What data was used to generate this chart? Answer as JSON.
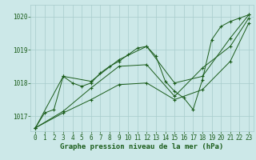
{
  "xlabel": "Graphe pression niveau de la mer (hPa)",
  "xlim": [
    -0.5,
    23.5
  ],
  "ylim": [
    1016.55,
    1020.35
  ],
  "yticks": [
    1017,
    1018,
    1019,
    1020
  ],
  "xticks": [
    0,
    1,
    2,
    3,
    4,
    5,
    6,
    7,
    8,
    9,
    10,
    11,
    12,
    13,
    14,
    15,
    16,
    17,
    18,
    19,
    20,
    21,
    22,
    23
  ],
  "bg_color": "#cce8e8",
  "grid_color": "#a8cccc",
  "line_color": "#1a5c1a",
  "lines": [
    {
      "x": [
        0,
        1,
        2,
        3,
        4,
        5,
        6,
        7,
        8,
        9,
        10,
        11,
        12,
        13,
        14,
        15,
        16,
        17,
        18,
        19,
        20,
        21,
        22,
        23
      ],
      "y": [
        1016.65,
        1017.1,
        1017.2,
        1018.2,
        1018.0,
        1017.9,
        1018.0,
        1018.3,
        1018.5,
        1018.65,
        1018.85,
        1019.05,
        1019.1,
        1018.8,
        1018.05,
        1017.75,
        1017.55,
        1017.2,
        1018.1,
        1019.3,
        1019.7,
        1019.85,
        1019.95,
        1020.05
      ]
    },
    {
      "x": [
        0,
        3,
        6,
        9,
        12,
        15,
        18,
        21,
        23
      ],
      "y": [
        1016.65,
        1018.2,
        1018.05,
        1018.7,
        1019.1,
        1018.0,
        1018.2,
        1019.35,
        1020.05
      ]
    },
    {
      "x": [
        0,
        3,
        6,
        9,
        12,
        15,
        18,
        21,
        23
      ],
      "y": [
        1016.65,
        1017.15,
        1017.85,
        1018.5,
        1018.55,
        1017.6,
        1018.45,
        1019.1,
        1019.95
      ]
    },
    {
      "x": [
        0,
        3,
        6,
        9,
        12,
        15,
        18,
        21,
        23
      ],
      "y": [
        1016.65,
        1017.1,
        1017.5,
        1017.95,
        1018.0,
        1017.5,
        1017.8,
        1018.65,
        1019.8
      ]
    }
  ],
  "marker": "+",
  "markersize": 3,
  "markeredgewidth": 0.8,
  "linewidth": 0.7,
  "font_family": "monospace",
  "xlabel_fontsize": 6.5,
  "tick_fontsize": 5.5
}
